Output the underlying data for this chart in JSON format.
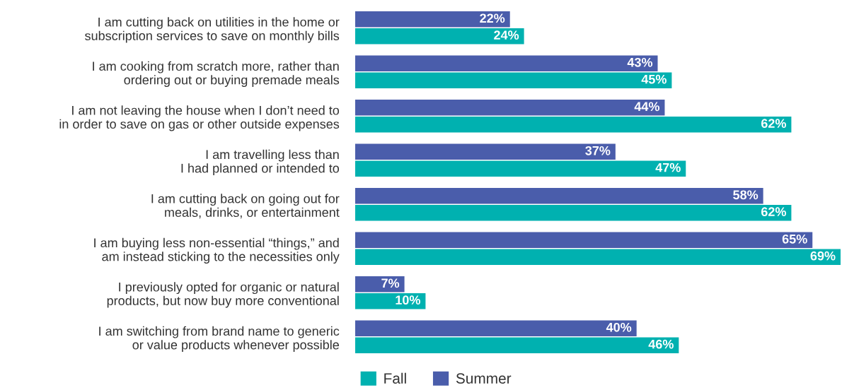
{
  "chart_data": {
    "type": "bar",
    "orientation": "horizontal",
    "categories": [
      "I am cutting back on utilities in the home or\nsubscription services to save on monthly bills",
      "I am cooking from scratch more, rather than\nordering out or buying premade meals",
      "I am not leaving the house when I don’t need to\nin order to save on gas or other outside expenses",
      "I am travelling less than\nI had planned or intended to",
      "I am cutting back on going out for\nmeals, drinks, or entertainment",
      "I am buying less non-essential “things,” and\nam instead sticking to the necessities only",
      "I previously opted for organic or natural\nproducts, but now buy more conventional",
      "I am switching from brand name to generic\nor value products whenever possible"
    ],
    "series": [
      {
        "name": "Fall",
        "color": "#00b1b0",
        "values": [
          24,
          45,
          62,
          47,
          62,
          69,
          10,
          46
        ],
        "value_labels": [
          "24%",
          "45%",
          "62%",
          "47%",
          "62%",
          "69%",
          "10%",
          "46%"
        ]
      },
      {
        "name": "Summer",
        "color": "#4a5dab",
        "values": [
          22,
          43,
          44,
          37,
          58,
          65,
          7,
          40
        ],
        "value_labels": [
          "22%",
          "43%",
          "44%",
          "37%",
          "58%",
          "65%",
          "7%",
          "40%"
        ]
      }
    ],
    "legend": "bottom",
    "grid": false,
    "tick_labels": "y"
  }
}
